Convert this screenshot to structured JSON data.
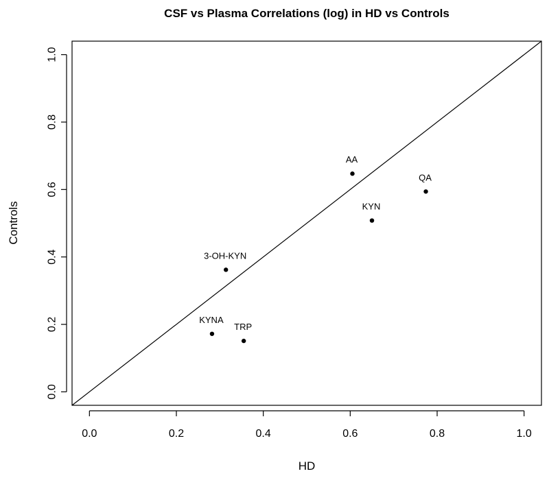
{
  "chart_data": {
    "type": "scatter",
    "title": "CSF vs Plasma Correlations (log) in HD vs Controls",
    "xlabel": "HD",
    "ylabel": "Controls",
    "xlim": [
      -0.04,
      1.04
    ],
    "ylim": [
      -0.04,
      1.04
    ],
    "x_ticks": [
      0.0,
      0.2,
      0.4,
      0.6,
      0.8,
      1.0
    ],
    "y_ticks": [
      0.0,
      0.2,
      0.4,
      0.6,
      0.8,
      1.0
    ],
    "tick_labels": [
      "0.0",
      "0.2",
      "0.4",
      "0.6",
      "0.8",
      "1.0"
    ],
    "reference_line": {
      "slope": 1,
      "intercept": 0
    },
    "points": [
      {
        "label": "AA",
        "x": 0.605,
        "y": 0.647
      },
      {
        "label": "QA",
        "x": 0.774,
        "y": 0.594
      },
      {
        "label": "KYN",
        "x": 0.65,
        "y": 0.508
      },
      {
        "label": "3-OH-KYN",
        "x": 0.314,
        "y": 0.362
      },
      {
        "label": "KYNA",
        "x": 0.282,
        "y": 0.172
      },
      {
        "label": "TRP",
        "x": 0.355,
        "y": 0.151
      }
    ],
    "grid": false
  }
}
